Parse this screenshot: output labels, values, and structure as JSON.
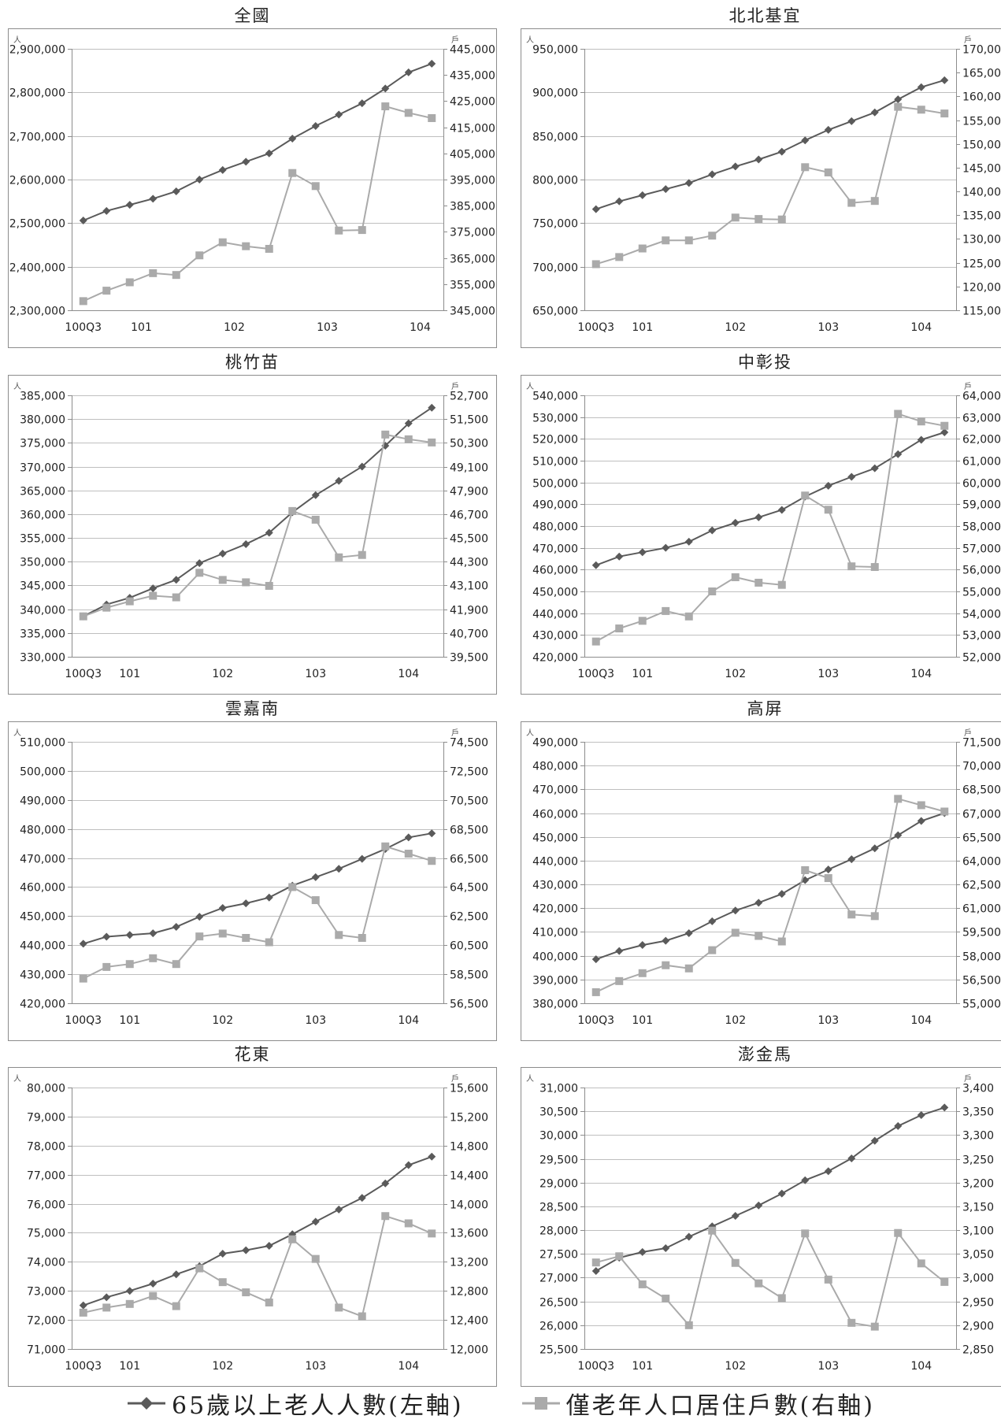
{
  "legend": {
    "series1": "65歲以上老人人數(左軸)",
    "series2": "僅老年人口居住戶數(右軸)"
  },
  "colors": {
    "series1": "#5a5a5a",
    "series2": "#aaaaaa",
    "grid": "#bfbfbf",
    "frame": "#8c8c8c"
  },
  "chart_data": [
    {
      "type": "line",
      "title": "全國",
      "left_unit": "人",
      "right_unit": "戶",
      "x_ticks": [
        "100Q3",
        "101",
        "102",
        "103",
        "104"
      ],
      "x_tick_positions": [
        0,
        2.5,
        6.5,
        10.5,
        14.5
      ],
      "ylim_left": [
        2300000,
        2900000
      ],
      "yticks_left": [
        2300000,
        2400000,
        2500000,
        2600000,
        2700000,
        2800000,
        2900000
      ],
      "ylim_right": [
        345000,
        445000
      ],
      "yticks_right": [
        345000,
        355000,
        365000,
        375000,
        385000,
        395000,
        405000,
        415000,
        425000,
        435000,
        445000
      ],
      "series": [
        {
          "axis": "left",
          "values": [
            2506000,
            2528000,
            2542000,
            2556000,
            2573000,
            2600000,
            2622000,
            2641000,
            2660000,
            2694000,
            2723000,
            2749000,
            2775000,
            2809000,
            2846000,
            2866000
          ]
        },
        {
          "axis": "right",
          "values": [
            348500,
            352500,
            355700,
            359200,
            358500,
            366000,
            371000,
            369500,
            368500,
            397500,
            392500,
            375500,
            375700,
            423000,
            420500,
            418500
          ]
        }
      ]
    },
    {
      "type": "line",
      "title": "北北基宜",
      "left_unit": "人",
      "right_unit": "戶",
      "x_ticks": [
        "100Q3",
        "101",
        "102",
        "103",
        "104"
      ],
      "x_tick_positions": [
        0,
        2,
        6,
        10,
        14
      ],
      "ylim_left": [
        650000,
        950000
      ],
      "yticks_left": [
        650000,
        700000,
        750000,
        800000,
        850000,
        900000,
        950000
      ],
      "ylim_right": [
        115000,
        170000
      ],
      "yticks_right": [
        115000,
        120000,
        125000,
        130000,
        135000,
        140000,
        145000,
        150000,
        155000,
        160000,
        165000,
        170000
      ],
      "series": [
        {
          "axis": "left",
          "values": [
            766000,
            775000,
            782000,
            789000,
            796000,
            806000,
            815000,
            823000,
            832000,
            845000,
            857000,
            867000,
            877000,
            892000,
            906000,
            914000
          ]
        },
        {
          "axis": "right",
          "values": [
            124700,
            126200,
            128000,
            129700,
            129700,
            130700,
            134500,
            134200,
            134100,
            145100,
            144000,
            137600,
            138000,
            157800,
            157200,
            156400
          ]
        }
      ]
    },
    {
      "type": "line",
      "title": "桃竹苗",
      "left_unit": "人",
      "right_unit": "戶",
      "x_ticks": [
        "100Q3",
        "101",
        "102",
        "103",
        "104"
      ],
      "x_tick_positions": [
        0,
        2,
        6,
        10,
        14
      ],
      "ylim_left": [
        330000,
        385000
      ],
      "yticks_left": [
        330000,
        335000,
        340000,
        345000,
        350000,
        355000,
        360000,
        365000,
        370000,
        375000,
        380000,
        385000
      ],
      "ylim_right": [
        39500,
        52700
      ],
      "yticks_right": [
        39500,
        40700,
        41900,
        43100,
        44300,
        45500,
        46700,
        47900,
        49100,
        50300,
        51500,
        52700
      ],
      "series": [
        {
          "axis": "left",
          "values": [
            338500,
            341000,
            342400,
            344400,
            346200,
            349700,
            351700,
            353700,
            356100,
            360400,
            364000,
            367000,
            370000,
            374400,
            379100,
            382400
          ]
        },
        {
          "axis": "right",
          "values": [
            41540,
            41980,
            42300,
            42580,
            42500,
            43740,
            43380,
            43260,
            43080,
            46860,
            46420,
            44520,
            44640,
            50720,
            50480,
            50320
          ]
        }
      ]
    },
    {
      "type": "line",
      "title": "中彰投",
      "left_unit": "人",
      "right_unit": "戶",
      "x_ticks": [
        "100Q3",
        "101",
        "102",
        "103",
        "104"
      ],
      "x_tick_positions": [
        0,
        2,
        6,
        10,
        14
      ],
      "ylim_left": [
        420000,
        540000
      ],
      "yticks_left": [
        420000,
        430000,
        440000,
        450000,
        460000,
        470000,
        480000,
        490000,
        500000,
        510000,
        520000,
        530000,
        540000
      ],
      "ylim_right": [
        52000,
        64000
      ],
      "yticks_right": [
        52000,
        53000,
        54000,
        55000,
        56000,
        57000,
        58000,
        59000,
        60000,
        61000,
        62000,
        63000,
        64000
      ],
      "series": [
        {
          "axis": "left",
          "values": [
            462000,
            466000,
            468000,
            470000,
            472800,
            478000,
            481500,
            484000,
            487400,
            493500,
            498500,
            502600,
            506500,
            513000,
            519600,
            523000
          ]
        },
        {
          "axis": "right",
          "values": [
            52700,
            53300,
            53650,
            54100,
            53850,
            55000,
            55650,
            55400,
            55300,
            59400,
            58750,
            56150,
            56120,
            63150,
            62800,
            62600
          ]
        }
      ]
    },
    {
      "type": "line",
      "title": "雲嘉南",
      "left_unit": "人",
      "right_unit": "戶",
      "x_ticks": [
        "100Q3",
        "101",
        "102",
        "103",
        "104"
      ],
      "x_tick_positions": [
        0,
        2,
        6,
        10,
        14
      ],
      "ylim_left": [
        420000,
        510000
      ],
      "yticks_left": [
        420000,
        430000,
        440000,
        450000,
        460000,
        470000,
        480000,
        490000,
        500000,
        510000
      ],
      "ylim_right": [
        56500,
        74500
      ],
      "yticks_right": [
        56500,
        58500,
        60500,
        62500,
        64500,
        66500,
        68500,
        70500,
        72500,
        74500
      ],
      "series": [
        {
          "axis": "left",
          "values": [
            440500,
            442900,
            443500,
            444100,
            446300,
            449800,
            452800,
            454400,
            456400,
            460500,
            463400,
            466300,
            469700,
            473100,
            477100,
            478500
          ]
        },
        {
          "axis": "right",
          "values": [
            58200,
            59000,
            59200,
            59600,
            59200,
            61100,
            61300,
            61000,
            60700,
            64500,
            63600,
            61200,
            61000,
            67300,
            66800,
            66300
          ]
        }
      ]
    },
    {
      "type": "line",
      "title": "高屏",
      "left_unit": "人",
      "right_unit": "戶",
      "x_ticks": [
        "100Q3",
        "101",
        "102",
        "103",
        "104"
      ],
      "x_tick_positions": [
        0,
        2,
        6,
        10,
        14
      ],
      "ylim_left": [
        380000,
        490000
      ],
      "yticks_left": [
        380000,
        390000,
        400000,
        410000,
        420000,
        430000,
        440000,
        450000,
        460000,
        470000,
        480000,
        490000
      ],
      "ylim_right": [
        55000,
        71500
      ],
      "yticks_right": [
        55000,
        56500,
        58000,
        59500,
        61000,
        62500,
        64000,
        65500,
        67000,
        68500,
        70000,
        71500
      ],
      "series": [
        {
          "axis": "left",
          "values": [
            398500,
            402000,
            404500,
            406300,
            409500,
            414500,
            419000,
            422300,
            426000,
            431800,
            436300,
            440600,
            445200,
            450700,
            456700,
            460000
          ]
        },
        {
          "axis": "right",
          "values": [
            55700,
            56400,
            56900,
            57400,
            57200,
            58350,
            59450,
            59250,
            58900,
            63400,
            62900,
            60600,
            60500,
            67900,
            67500,
            67100
          ]
        }
      ]
    },
    {
      "type": "line",
      "title": "花東",
      "left_unit": "人",
      "right_unit": "戶",
      "x_ticks": [
        "100Q3",
        "101",
        "102",
        "103",
        "104"
      ],
      "x_tick_positions": [
        0,
        2,
        6,
        10,
        14
      ],
      "ylim_left": [
        71000,
        80000
      ],
      "yticks_left": [
        71000,
        72000,
        73000,
        74000,
        75000,
        76000,
        77000,
        78000,
        79000,
        80000
      ],
      "ylim_right": [
        12000,
        15600
      ],
      "yticks_right": [
        12000,
        12400,
        12800,
        13200,
        13600,
        14000,
        14400,
        14800,
        15200,
        15600
      ],
      "series": [
        {
          "axis": "left",
          "values": [
            72500,
            72780,
            73000,
            73250,
            73570,
            73850,
            74280,
            74400,
            74550,
            74950,
            75380,
            75800,
            76200,
            76700,
            77330,
            77620
          ]
        },
        {
          "axis": "right",
          "values": [
            12500,
            12570,
            12620,
            12730,
            12590,
            13110,
            12920,
            12780,
            12640,
            13510,
            13240,
            12570,
            12450,
            13830,
            13730,
            13590
          ]
        }
      ]
    },
    {
      "type": "line",
      "title": "澎金馬",
      "left_unit": "人",
      "right_unit": "戶",
      "x_ticks": [
        "100Q3",
        "101",
        "102",
        "103",
        "104"
      ],
      "x_tick_positions": [
        0,
        2,
        6,
        10,
        14
      ],
      "ylim_left": [
        25500,
        31000
      ],
      "yticks_left": [
        25500,
        26000,
        26500,
        27000,
        27500,
        28000,
        28500,
        29000,
        29500,
        30000,
        30500,
        31000
      ],
      "ylim_right": [
        2850,
        3400
      ],
      "yticks_right": [
        2850,
        2900,
        2950,
        3000,
        3050,
        3100,
        3150,
        3200,
        3250,
        3300,
        3350,
        3400
      ],
      "series": [
        {
          "axis": "left",
          "values": [
            27140,
            27420,
            27540,
            27620,
            27860,
            28080,
            28300,
            28520,
            28770,
            29050,
            29240,
            29510,
            29880,
            30190,
            30420,
            30580
          ]
        },
        {
          "axis": "right",
          "values": [
            3032,
            3045,
            2986,
            2956,
            2900,
            3099,
            3031,
            2988,
            2957,
            3093,
            2996,
            2905,
            2897,
            3094,
            3030,
            2991
          ]
        }
      ]
    }
  ]
}
